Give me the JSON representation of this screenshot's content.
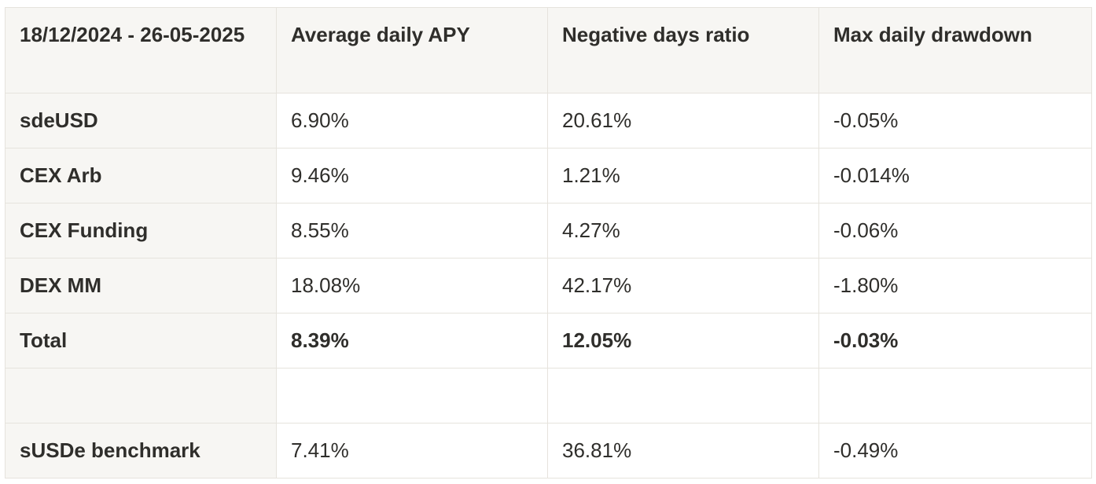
{
  "table": {
    "headers": [
      "18/12/2024 - 26-05-2025",
      "Average daily APY",
      "Negative days ratio",
      "Max daily drawdown"
    ],
    "rows": [
      [
        "sdeUSD",
        "6.90%",
        "20.61%",
        "-0.05%"
      ],
      [
        "CEX Arb",
        "9.46%",
        "1.21%",
        "-0.014%"
      ],
      [
        "CEX Funding",
        "8.55%",
        "4.27%",
        "-0.06%"
      ],
      [
        "DEX MM",
        "18.08%",
        "42.17%",
        "-1.80%"
      ],
      [
        "Total",
        "8.39%",
        "12.05%",
        "-0.03%"
      ],
      [
        "",
        "",
        "",
        ""
      ],
      [
        "sUSDe benchmark",
        "7.41%",
        "36.81%",
        "-0.49%"
      ]
    ]
  }
}
